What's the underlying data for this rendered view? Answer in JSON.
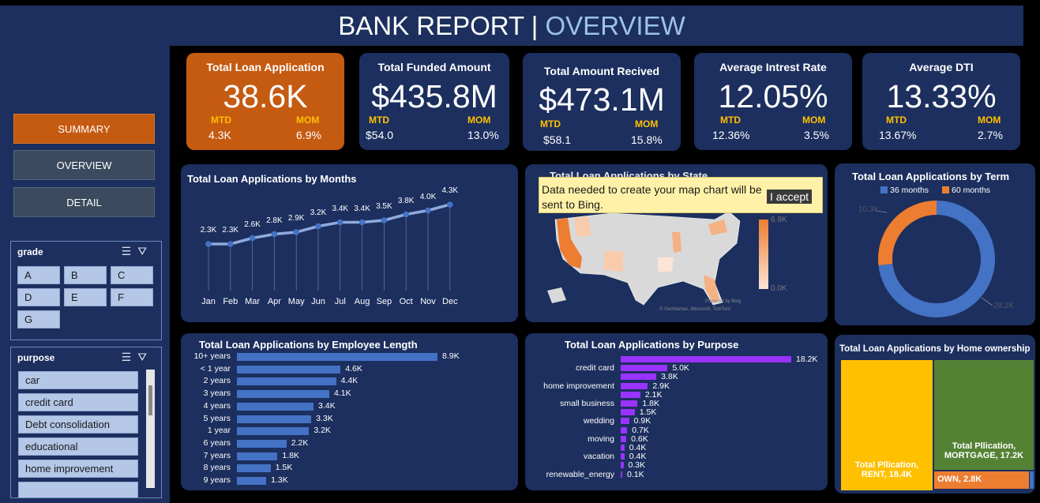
{
  "header": {
    "title_main": "BANK REPORT",
    "title_sep": "|",
    "title_accent": "OVERVIEW"
  },
  "nav": {
    "summary": "SUMMARY",
    "overview": "OVERVIEW",
    "detail": "DETAIL"
  },
  "slicers": {
    "grade": {
      "label": "grade",
      "options": [
        "A",
        "B",
        "C",
        "D",
        "E",
        "F",
        "G"
      ]
    },
    "purpose": {
      "label": "purpose",
      "options": [
        "car",
        "credit card",
        "Debt consolidation",
        "educational",
        "home improvement"
      ]
    }
  },
  "kpis": [
    {
      "label": "Total Loan Application",
      "value": "38.6K",
      "mtd_label": "MTD",
      "mtd": "4.3K",
      "mom_label": "MOM",
      "mom": "6.9%"
    },
    {
      "label": "Total Funded Amount",
      "value": "$435.8M",
      "mtd_label": "MTD",
      "mtd": "$54.0",
      "mom_label": "MOM",
      "mom": "13.0%"
    },
    {
      "label": "Total Amount Recived",
      "value": "$473.1M",
      "mtd_label": "MTD",
      "mtd": "$58.1",
      "mom_label": "MOM",
      "mom": "15.8%"
    },
    {
      "label": "Average Intrest Rate",
      "value": "12.05%",
      "mtd_label": "MTD",
      "mtd": "12.36%",
      "mom_label": "MOM",
      "mom": "3.5%"
    },
    {
      "label": "Average DTI",
      "value": "13.33%",
      "mtd_label": "MTD",
      "mtd": "13.67%",
      "mom_label": "MOM",
      "mom": "2.7%"
    }
  ],
  "map": {
    "title": "Total Loan Applications by State",
    "popup_text": "Data needed to create your map chart will be sent to Bing.",
    "accept": "I accept",
    "legend_max": "6.9K",
    "legend_min": "0.0K",
    "credit1": "Powered by Bing",
    "credit2": "© GeoNames, Microsoft, TomTom"
  },
  "colors": {
    "navy": "#1c2f5e",
    "orange": "#c55a11",
    "accent": "#ffc000",
    "blue": "#4472c4",
    "purple": "#9933ff"
  },
  "chart_data": [
    {
      "type": "line",
      "title": "Total Loan Applications by Months",
      "categories": [
        "Jan",
        "Feb",
        "Mar",
        "Apr",
        "May",
        "Jun",
        "Jul",
        "Aug",
        "Sep",
        "Oct",
        "Nov",
        "Dec"
      ],
      "values": [
        2.3,
        2.3,
        2.6,
        2.8,
        2.9,
        3.2,
        3.4,
        3.4,
        3.5,
        3.8,
        4.0,
        4.3
      ],
      "labels": [
        "2.3K",
        "2.3K",
        "2.6K",
        "2.8K",
        "2.9K",
        "3.2K",
        "3.4K",
        "3.4K",
        "3.5K",
        "3.8K",
        "4.0K",
        "4.3K"
      ],
      "ylim": [
        0,
        4.3
      ]
    },
    {
      "type": "pie",
      "title": "Total Loan Applications by Term",
      "categories": [
        "36 months",
        "60 months"
      ],
      "values": [
        28.2,
        10.3
      ],
      "labels": [
        "28.2K",
        "10.3K"
      ],
      "legend": "top"
    },
    {
      "type": "bar",
      "title": "Total Loan Applications by Employee  Length",
      "categories": [
        "10+ years",
        "< 1 year",
        "2 years",
        "3 years",
        "4 years",
        "5 years",
        "1 year",
        "6 years",
        "7 years",
        "8 years",
        "9 years"
      ],
      "values": [
        8.9,
        4.6,
        4.4,
        4.1,
        3.4,
        3.3,
        3.2,
        2.2,
        1.8,
        1.5,
        1.3
      ],
      "labels": [
        "8.9K",
        "4.6K",
        "4.4K",
        "4.1K",
        "3.4K",
        "3.3K",
        "3.2K",
        "2.2K",
        "1.8K",
        "1.5K",
        "1.3K"
      ]
    },
    {
      "type": "bar",
      "title": "Total Loan Applications by Purpose",
      "categories": [
        "",
        "credit card",
        "",
        "home improvement",
        "",
        "small business",
        "",
        "wedding",
        "",
        "moving",
        "",
        "vacation",
        "",
        "renewable_energy"
      ],
      "values": [
        18.2,
        5.0,
        3.8,
        2.9,
        2.1,
        1.8,
        1.5,
        0.9,
        0.7,
        0.6,
        0.4,
        0.4,
        0.3,
        0.1
      ],
      "labels": [
        "18.2K",
        "5.0K",
        "3.8K",
        "2.9K",
        "2.1K",
        "1.8K",
        "1.5K",
        "0.9K",
        "0.7K",
        "0.6K",
        "0.4K",
        "0.4K",
        "0.3K",
        "0.1K"
      ]
    },
    {
      "type": "treemap",
      "title": "Total Loan Applications by Home ownership",
      "items": [
        {
          "name": "Total Pllication, RENT, 18.4K",
          "line1": "Total Pllication,",
          "line2": "RENT, 18.4K",
          "value": 18.4
        },
        {
          "name": "Total Pllication, MORTGAGE, 17.2K",
          "line1": "Total Pllication,",
          "line2": "MORTGAGE, 17.2K",
          "value": 17.2
        },
        {
          "name": "OWN, 2.8K",
          "line1": "OWN, 2.8K",
          "value": 2.8
        }
      ]
    }
  ]
}
